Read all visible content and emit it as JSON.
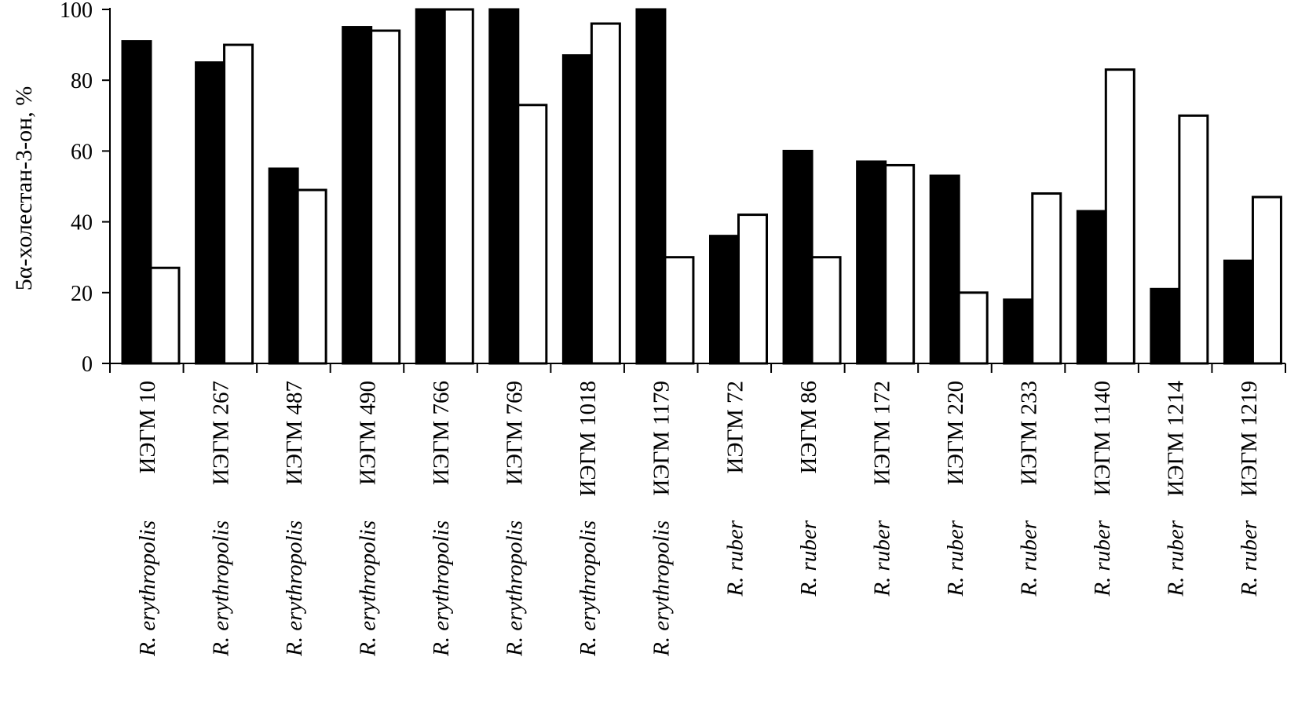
{
  "chart_data": {
    "type": "bar",
    "ylabel": "5α-холестан-3-он, %",
    "ylim": [
      0,
      100
    ],
    "yticks": [
      0,
      20,
      40,
      60,
      80,
      100
    ],
    "grid": false,
    "categories": [
      {
        "species": "R. erythropolis",
        "strain": "ИЭГМ 10"
      },
      {
        "species": "R. erythropolis",
        "strain": "ИЭГМ 267"
      },
      {
        "species": "R. erythropolis",
        "strain": "ИЭГМ 487"
      },
      {
        "species": "R. erythropolis",
        "strain": "ИЭГМ 490"
      },
      {
        "species": "R. erythropolis",
        "strain": "ИЭГМ 766"
      },
      {
        "species": "R. erythropolis",
        "strain": "ИЭГМ 769"
      },
      {
        "species": "R. erythropolis",
        "strain": "ИЭГМ 1018"
      },
      {
        "species": "R. erythropolis",
        "strain": "ИЭГМ 1179"
      },
      {
        "species": "R. ruber",
        "strain": "ИЭГМ 72"
      },
      {
        "species": "R. ruber",
        "strain": "ИЭГМ 86"
      },
      {
        "species": "R. ruber",
        "strain": "ИЭГМ 172"
      },
      {
        "species": "R. ruber",
        "strain": "ИЭГМ 220"
      },
      {
        "species": "R. ruber",
        "strain": "ИЭГМ 233"
      },
      {
        "species": "R. ruber",
        "strain": "ИЭГМ 1140"
      },
      {
        "species": "R. ruber",
        "strain": "ИЭГМ 1214"
      },
      {
        "species": "R. ruber",
        "strain": "ИЭГМ 1219"
      }
    ],
    "series": [
      {
        "color": "#000000",
        "values": [
          91,
          85,
          55,
          95,
          100,
          100,
          87,
          100,
          36,
          60,
          57,
          53,
          18,
          43,
          21,
          29
        ]
      },
      {
        "color": "#ffffff",
        "values": [
          27,
          90,
          49,
          94,
          100,
          73,
          96,
          30,
          42,
          30,
          56,
          20,
          48,
          83,
          70,
          47
        ]
      }
    ]
  }
}
